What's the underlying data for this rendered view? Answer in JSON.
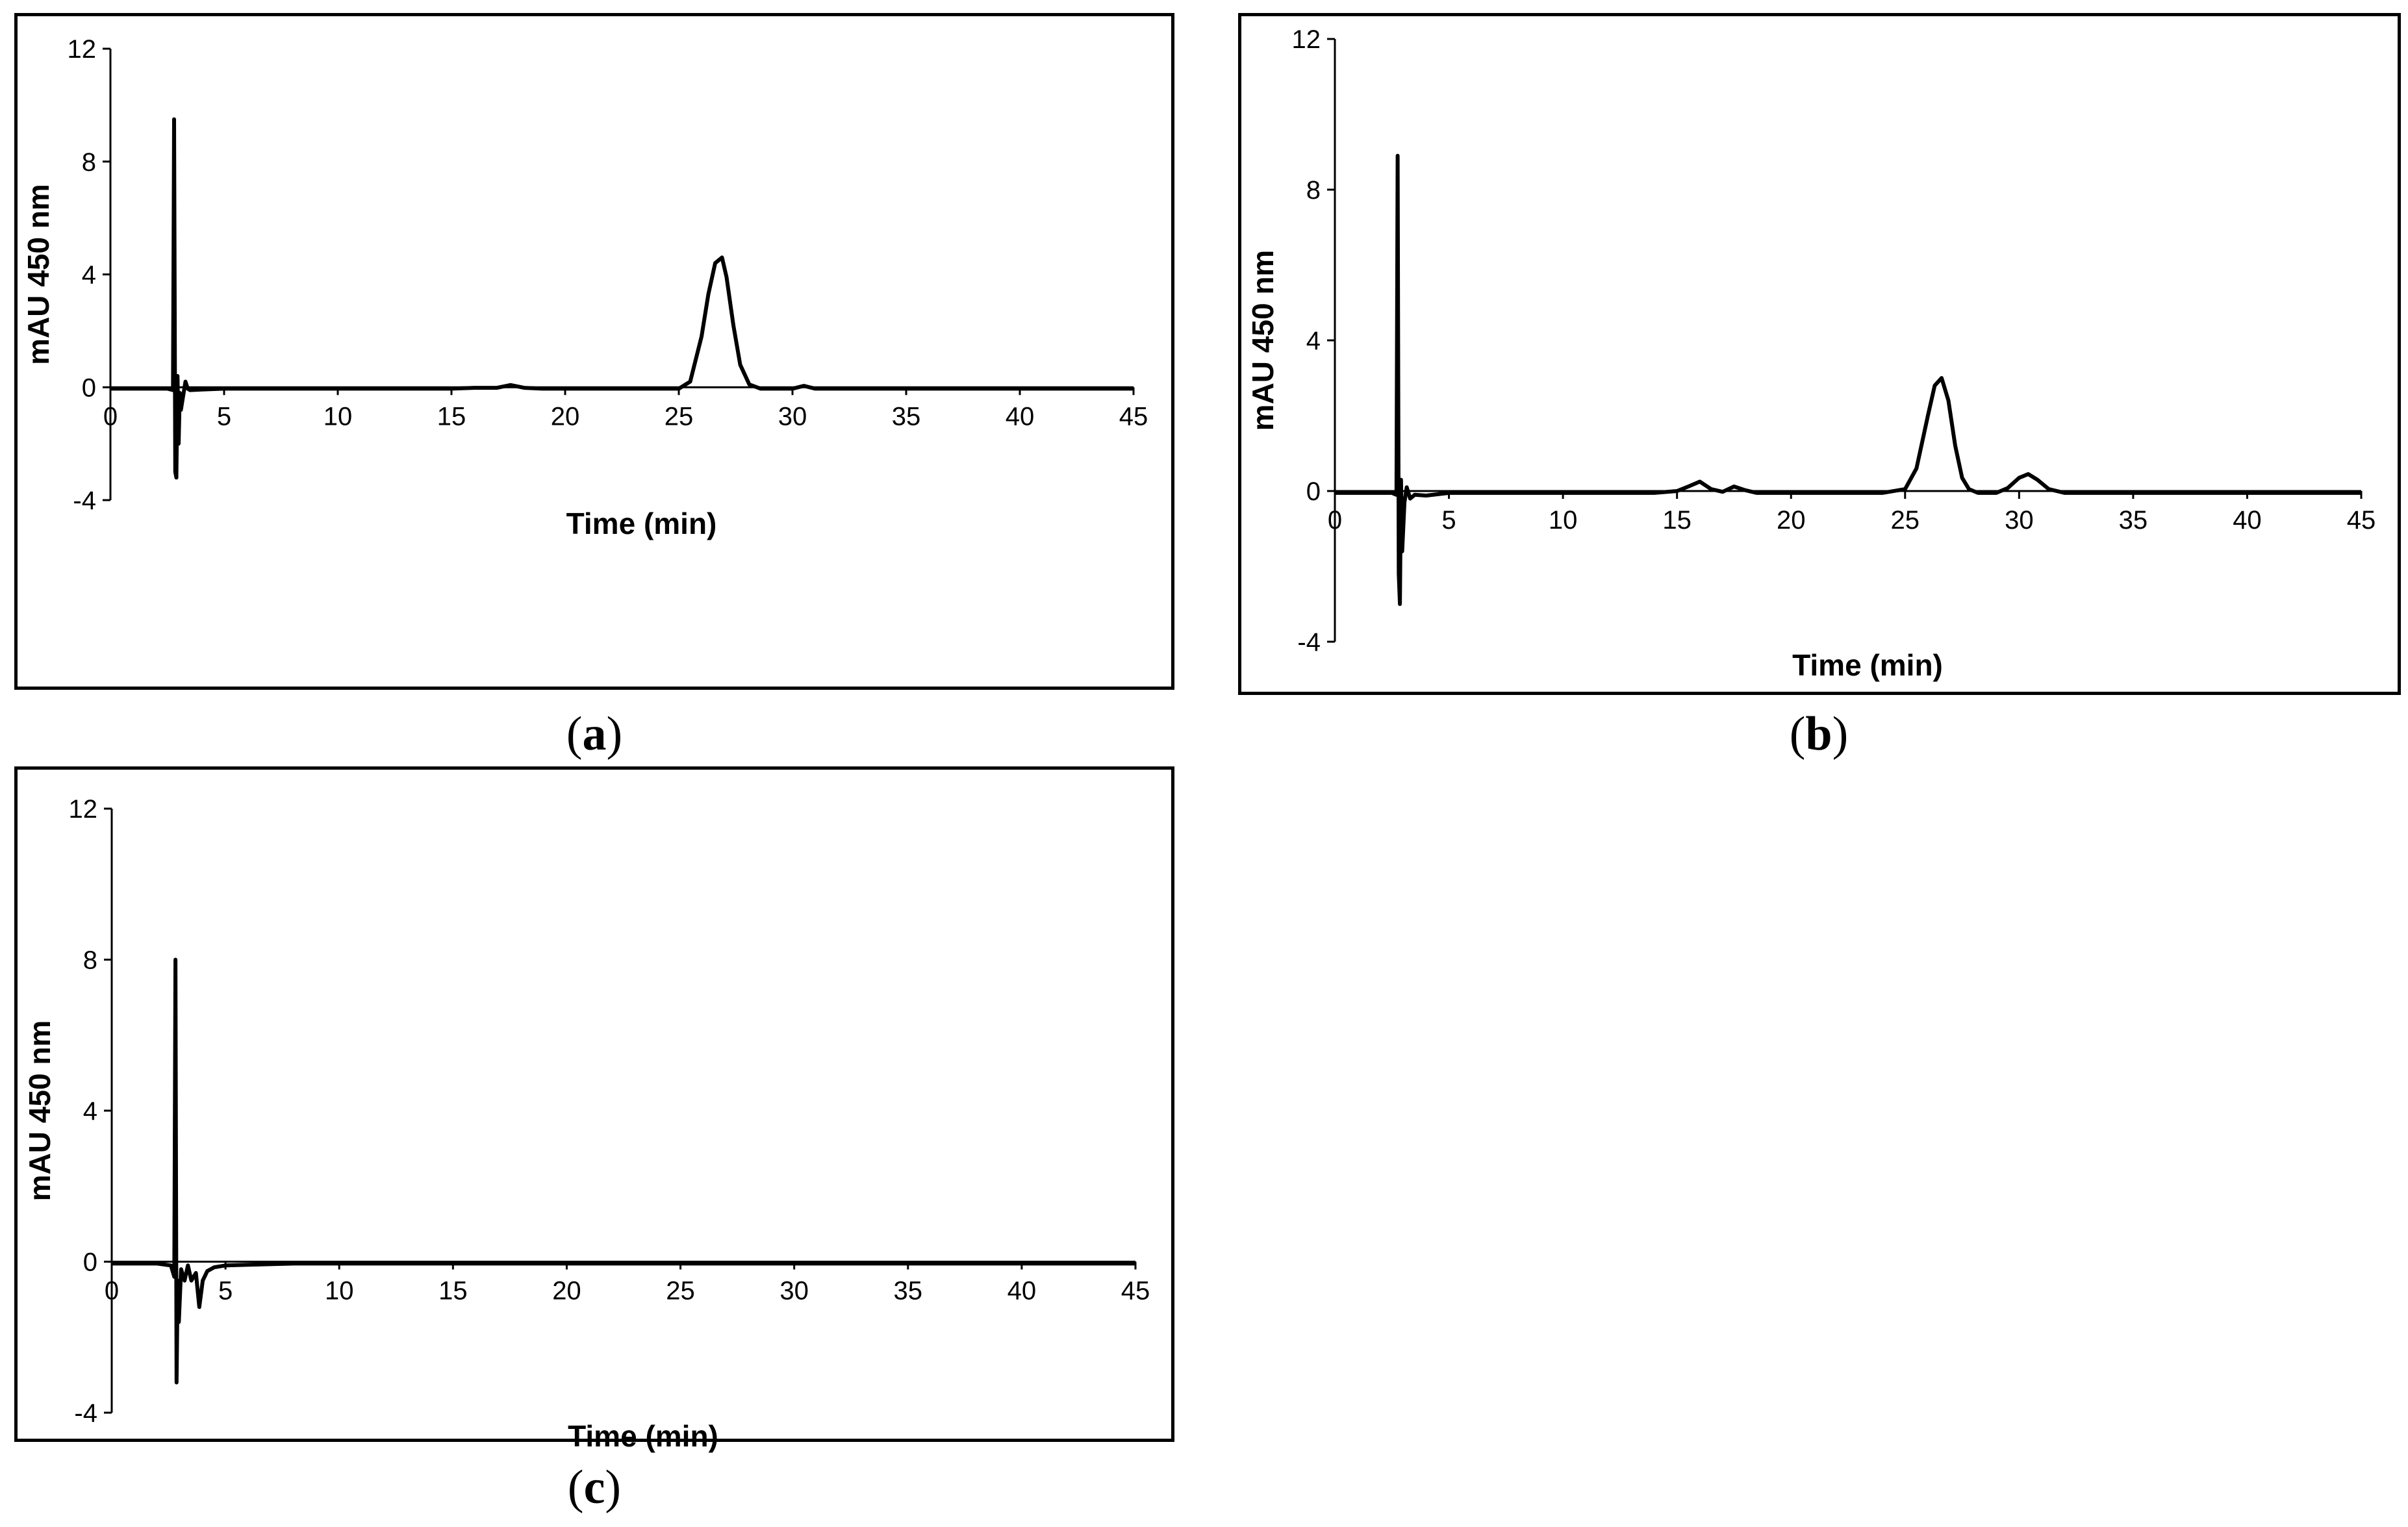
{
  "chart_data": [
    {
      "type": "line",
      "panel_label": "a",
      "xlabel": "Time (min)",
      "ylabel": "mAU 450 nm",
      "xlim": [
        0,
        45
      ],
      "ylim": [
        -4,
        12
      ],
      "x_ticks": [
        "0",
        "5",
        "10",
        "15",
        "20",
        "25",
        "30",
        "35",
        "40",
        "45"
      ],
      "y_ticks": [
        "12",
        "8",
        "4",
        "0",
        "-4"
      ],
      "grid": false,
      "series": [
        {
          "x": [
            0,
            2.5,
            2.75,
            2.8,
            2.85,
            2.9,
            2.95,
            3.0,
            3.05,
            3.1,
            3.2,
            3.3,
            3.4,
            3.5,
            4.0,
            5,
            7,
            10,
            15,
            16,
            17,
            17.6,
            18.2,
            19,
            22,
            25,
            25.5,
            26.0,
            26.3,
            26.6,
            26.9,
            27.1,
            27.4,
            27.7,
            28.1,
            28.6,
            30,
            30.5,
            31,
            35,
            40,
            45
          ],
          "y": [
            -0.05,
            -0.05,
            -0.1,
            9.5,
            -3.0,
            -3.2,
            0.4,
            -2.0,
            -0.2,
            -0.8,
            -0.3,
            0.2,
            -0.05,
            -0.1,
            -0.08,
            -0.05,
            -0.05,
            -0.05,
            -0.05,
            -0.02,
            -0.02,
            0.08,
            -0.02,
            -0.05,
            -0.05,
            -0.05,
            0.2,
            1.8,
            3.3,
            4.4,
            4.6,
            3.9,
            2.2,
            0.8,
            0.1,
            -0.05,
            -0.05,
            0.05,
            -0.05,
            -0.05,
            -0.05,
            -0.05
          ]
        }
      ]
    },
    {
      "type": "line",
      "panel_label": "b",
      "xlabel": "Time (min)",
      "ylabel": "mAU 450 nm",
      "xlim": [
        0,
        45
      ],
      "ylim": [
        -4,
        12
      ],
      "x_ticks": [
        "0",
        "5",
        "10",
        "15",
        "20",
        "25",
        "30",
        "35",
        "40",
        "45"
      ],
      "y_ticks": [
        "12",
        "8",
        "4",
        "0",
        "-4"
      ],
      "grid": false,
      "series": [
        {
          "x": [
            0,
            2.5,
            2.7,
            2.75,
            2.8,
            2.85,
            2.9,
            2.95,
            3.05,
            3.15,
            3.3,
            3.5,
            4,
            5,
            8,
            10,
            14,
            15,
            15.5,
            16,
            16.5,
            17,
            17.5,
            18,
            18.5,
            20,
            24,
            25,
            25.5,
            26,
            26.3,
            26.6,
            26.9,
            27.2,
            27.5,
            27.8,
            28.2,
            29,
            29.5,
            30,
            30.4,
            30.8,
            31.3,
            32,
            35,
            40,
            45
          ],
          "y": [
            -0.05,
            -0.05,
            -0.1,
            8.9,
            -2.2,
            -3.0,
            0.3,
            -1.6,
            -0.3,
            0.1,
            -0.2,
            -0.1,
            -0.12,
            -0.05,
            -0.05,
            -0.05,
            -0.05,
            0.0,
            0.12,
            0.25,
            0.05,
            -0.02,
            0.12,
            0.02,
            -0.05,
            -0.05,
            -0.05,
            0.05,
            0.6,
            2.0,
            2.8,
            3.0,
            2.4,
            1.2,
            0.35,
            0.05,
            -0.05,
            -0.05,
            0.08,
            0.35,
            0.45,
            0.3,
            0.05,
            -0.05,
            -0.05,
            -0.05,
            -0.05
          ]
        }
      ]
    },
    {
      "type": "line",
      "panel_label": "c",
      "xlabel": "Time (min)",
      "ylabel": "mAU 450 nm",
      "xlim": [
        0,
        45
      ],
      "ylim": [
        -4,
        12
      ],
      "x_ticks": [
        "0",
        "5",
        "10",
        "15",
        "20",
        "25",
        "30",
        "35",
        "40",
        "45"
      ],
      "y_ticks": [
        "12",
        "8",
        "4",
        "0",
        "-4"
      ],
      "grid": false,
      "series": [
        {
          "x": [
            0,
            2.0,
            2.6,
            2.75,
            2.8,
            2.85,
            2.9,
            2.95,
            3.05,
            3.2,
            3.35,
            3.5,
            3.7,
            3.85,
            4.0,
            4.2,
            4.5,
            5,
            6,
            8,
            10,
            15,
            20,
            25,
            30,
            35,
            40,
            45
          ],
          "y": [
            -0.05,
            -0.05,
            -0.1,
            -0.4,
            8.0,
            -3.2,
            -0.5,
            -1.6,
            -0.2,
            -0.5,
            -0.1,
            -0.5,
            -0.3,
            -1.2,
            -0.5,
            -0.25,
            -0.15,
            -0.1,
            -0.08,
            -0.05,
            -0.05,
            -0.05,
            -0.05,
            -0.05,
            -0.05,
            -0.05,
            -0.05,
            -0.05
          ]
        }
      ]
    }
  ]
}
